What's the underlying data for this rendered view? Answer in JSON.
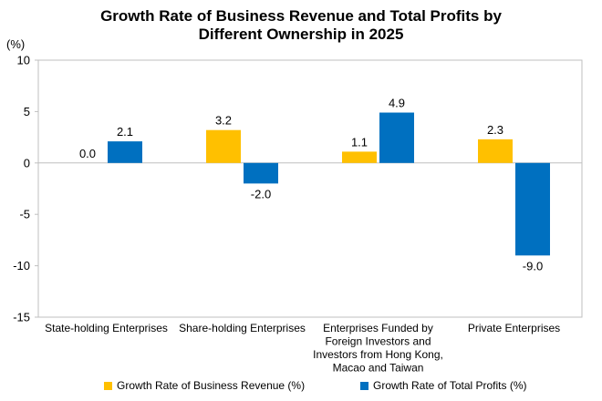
{
  "title_line1": "Growth Rate of Business Revenue and Total Profits by",
  "title_line2": "Different Ownership in 2025",
  "unit_label": "(%)",
  "colors": {
    "revenue": "#ffc000",
    "profits": "#0070c0",
    "axis": "#bfbfbf"
  },
  "chart_data": {
    "type": "bar",
    "title": "Growth Rate of Business Revenue and Total Profits by Different Ownership in 2025",
    "ylabel": "(%)",
    "xlabel": "",
    "ylim": [
      -15,
      10
    ],
    "yticks": [
      10,
      5,
      0,
      -5,
      -10,
      -15
    ],
    "grid": false,
    "legend_position": "bottom",
    "categories": [
      [
        "State-holding Enterprises"
      ],
      [
        "Share-holding Enterprises"
      ],
      [
        "Enterprises Funded by",
        "Foreign Investors and",
        "Investors from Hong Kong,",
        "Macao and Taiwan"
      ],
      [
        "Private Enterprises"
      ]
    ],
    "series": [
      {
        "name": "Growth Rate of Business Revenue (%)",
        "values": [
          0.0,
          3.2,
          1.1,
          2.3
        ],
        "labels": [
          "0.0",
          "3.2",
          "1.1",
          "2.3"
        ]
      },
      {
        "name": "Growth Rate of Total Profits (%)",
        "values": [
          2.1,
          -2.0,
          4.9,
          -9.0
        ],
        "labels": [
          "2.1",
          "-2.0",
          "4.9",
          "-9.0"
        ]
      }
    ]
  }
}
